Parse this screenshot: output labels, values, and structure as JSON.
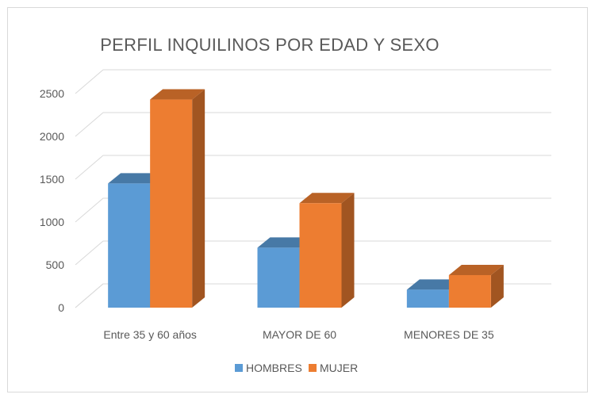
{
  "chart_data": {
    "type": "bar",
    "title": "PERFIL INQUILINOS POR EDAD Y SEXO",
    "xlabel": "",
    "ylabel": "",
    "categories": [
      "Entre 35 y 60 años",
      "MAYOR DE 60",
      "MENORES DE 35"
    ],
    "series": [
      {
        "name": "HOMBRES",
        "values": [
          1450,
          700,
          210
        ],
        "color": "#5b9bd5"
      },
      {
        "name": "MUJER",
        "values": [
          2430,
          1220,
          380
        ],
        "color": "#ed7d31"
      }
    ],
    "ylim": [
      0,
      2500
    ],
    "yticks": [
      0,
      500,
      1000,
      1500,
      2000,
      2500
    ],
    "grid": true,
    "style": "3d-clustered-column",
    "legend_position": "bottom"
  }
}
